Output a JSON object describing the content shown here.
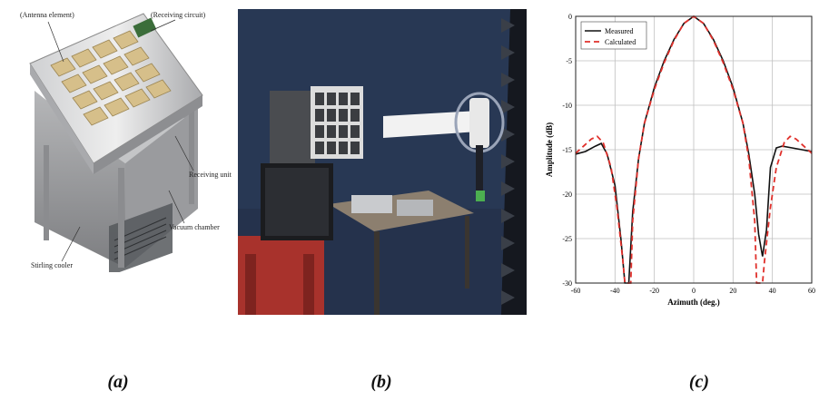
{
  "figure": {
    "captions": [
      "(a)",
      "(b)",
      "(c)"
    ]
  },
  "panel_a": {
    "callouts": {
      "antenna_element": "(Antenna element)",
      "receiving_circuit": "(Receiving circuit)",
      "receiving_unit": "Receiving unit",
      "vacuum_chamber": "Vacuum chamber",
      "stirling_cooler": "Stirling cooler"
    }
  },
  "colors": {
    "measured": "#111111",
    "calculated": "#e0302b",
    "grid": "#bfbfbf"
  },
  "chart_data": {
    "type": "line",
    "title": "",
    "xlabel": "Azimuth (deg.)",
    "ylabel": "Amplitude (dB)",
    "xlim": [
      -60,
      60
    ],
    "ylim": [
      -30,
      0
    ],
    "xticks": [
      -60,
      -40,
      -20,
      0,
      20,
      40,
      60
    ],
    "yticks": [
      0,
      -5,
      -10,
      -15,
      -20,
      -25,
      -30
    ],
    "grid": true,
    "legend": "top-left",
    "series": [
      {
        "name": "Measured",
        "style": "solid",
        "points": [
          [
            -60,
            -15.5
          ],
          [
            -55,
            -15.2
          ],
          [
            -50,
            -14.6
          ],
          [
            -47,
            -14.3
          ],
          [
            -44,
            -15.5
          ],
          [
            -40,
            -19
          ],
          [
            -37,
            -25
          ],
          [
            -35,
            -30
          ],
          [
            -33,
            -30
          ],
          [
            -31,
            -22
          ],
          [
            -28,
            -16
          ],
          [
            -25,
            -12
          ],
          [
            -20,
            -8
          ],
          [
            -15,
            -5
          ],
          [
            -10,
            -2.6
          ],
          [
            -5,
            -0.8
          ],
          [
            0,
            0
          ],
          [
            5,
            -0.8
          ],
          [
            10,
            -2.6
          ],
          [
            15,
            -5
          ],
          [
            20,
            -8
          ],
          [
            25,
            -12
          ],
          [
            28,
            -15.5
          ],
          [
            31,
            -20
          ],
          [
            33,
            -24.5
          ],
          [
            35,
            -27
          ],
          [
            37,
            -24
          ],
          [
            39,
            -17
          ],
          [
            42,
            -14.8
          ],
          [
            45,
            -14.6
          ],
          [
            50,
            -14.8
          ],
          [
            55,
            -15
          ],
          [
            60,
            -15.2
          ]
        ]
      },
      {
        "name": "Calculated",
        "style": "dashed",
        "points": [
          [
            -60,
            -15.4
          ],
          [
            -56,
            -14.6
          ],
          [
            -52,
            -13.8
          ],
          [
            -49,
            -13.5
          ],
          [
            -46,
            -14.2
          ],
          [
            -42,
            -17
          ],
          [
            -39,
            -21.5
          ],
          [
            -36,
            -27.5
          ],
          [
            -35,
            -30
          ],
          [
            -32,
            -30
          ],
          [
            -31,
            -23
          ],
          [
            -28,
            -16
          ],
          [
            -25,
            -12
          ],
          [
            -20,
            -8.2
          ],
          [
            -15,
            -5.2
          ],
          [
            -10,
            -2.7
          ],
          [
            -5,
            -0.8
          ],
          [
            0,
            0
          ],
          [
            5,
            -0.8
          ],
          [
            10,
            -2.7
          ],
          [
            15,
            -5.2
          ],
          [
            20,
            -8.2
          ],
          [
            25,
            -12
          ],
          [
            28,
            -16
          ],
          [
            31,
            -23
          ],
          [
            32,
            -30
          ],
          [
            35,
            -30
          ],
          [
            36,
            -27.5
          ],
          [
            39,
            -21.5
          ],
          [
            42,
            -17
          ],
          [
            46,
            -14.2
          ],
          [
            49,
            -13.5
          ],
          [
            52,
            -13.8
          ],
          [
            56,
            -14.6
          ],
          [
            60,
            -15.4
          ]
        ]
      }
    ]
  }
}
